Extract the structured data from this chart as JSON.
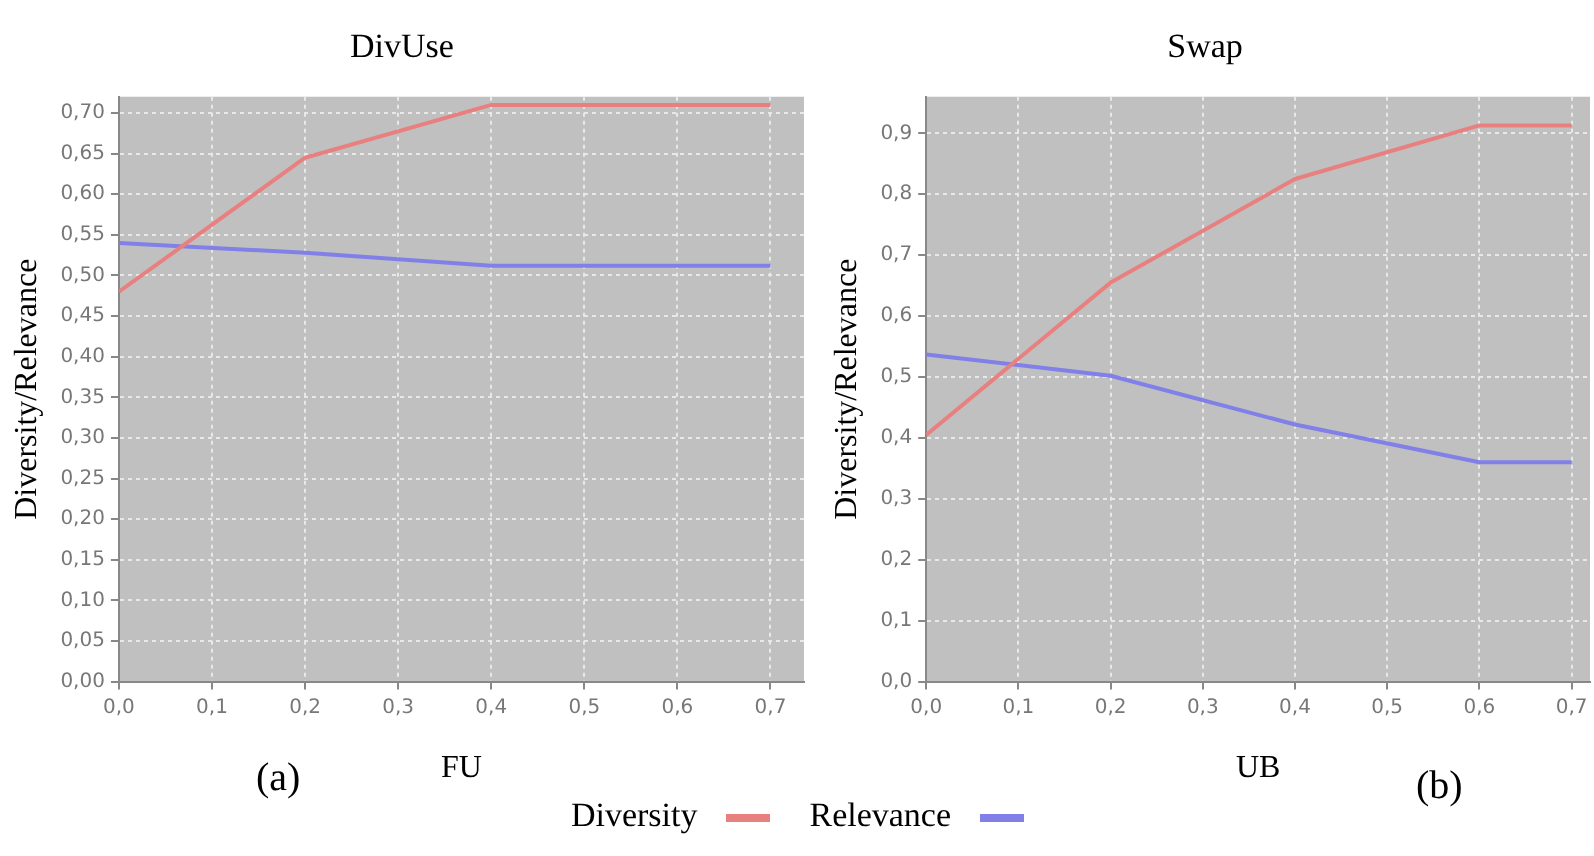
{
  "chart_data": [
    {
      "type": "line",
      "title": "DivUse",
      "xlabel": "FU",
      "ylabel": "Diversity/Relevance",
      "annotations": [
        "(a)"
      ],
      "x": [
        0,
        0.2,
        0.4,
        0.7
      ],
      "series": [
        {
          "color": "#e88080",
          "values": [
            0.48,
            0.645,
            0.71,
            0.71
          ]
        },
        {
          "color": "#8080e8",
          "values": [
            0.54,
            0.528,
            0.512,
            0.512
          ]
        }
      ],
      "xlim": [
        0,
        0.736
      ],
      "ylim": [
        0,
        0.72
      ],
      "xticks": [
        {
          "value": 0,
          "label": "0,0"
        },
        {
          "value": 0.1,
          "label": "0,1"
        },
        {
          "value": 0.2,
          "label": "0,2"
        },
        {
          "value": 0.3,
          "label": "0,3"
        },
        {
          "value": 0.4,
          "label": "0,4"
        },
        {
          "value": 0.5,
          "label": "0,5"
        },
        {
          "value": 0.6,
          "label": "0,6"
        },
        {
          "value": 0.7,
          "label": "0,7"
        }
      ],
      "yticks": [
        {
          "value": 0,
          "label": "0,00"
        },
        {
          "value": 0.05,
          "label": "0,05"
        },
        {
          "value": 0.1,
          "label": "0,10"
        },
        {
          "value": 0.15,
          "label": "0,15"
        },
        {
          "value": 0.2,
          "label": "0,20"
        },
        {
          "value": 0.25,
          "label": "0,25"
        },
        {
          "value": 0.3,
          "label": "0,30"
        },
        {
          "value": 0.35,
          "label": "0,35"
        },
        {
          "value": 0.4,
          "label": "0,40"
        },
        {
          "value": 0.45,
          "label": "0,45"
        },
        {
          "value": 0.5,
          "label": "0,50"
        },
        {
          "value": 0.55,
          "label": "0,55"
        },
        {
          "value": 0.6,
          "label": "0,60"
        },
        {
          "value": 0.65,
          "label": "0,65"
        },
        {
          "value": 0.7,
          "label": "0,70"
        }
      ],
      "grid": true,
      "legend": false,
      "marker": "none"
    },
    {
      "type": "line",
      "title": "Swap",
      "xlabel": "UB",
      "ylabel": "Diversity/Relevance",
      "annotations": [
        "(b)"
      ],
      "x": [
        0,
        0.2,
        0.4,
        0.6,
        0.7
      ],
      "series": [
        {
          "name": "Diversity",
          "color": "#e88080",
          "values": [
            0.405,
            0.655,
            0.825,
            0.913,
            0.913
          ]
        },
        {
          "name": "Relevance",
          "color": "#8080e8",
          "values": [
            0.537,
            0.502,
            0.422,
            0.36,
            0.36
          ]
        }
      ],
      "xlim": [
        0,
        0.72
      ],
      "ylim": [
        0,
        0.96
      ],
      "xticks": [
        {
          "value": 0,
          "label": "0,0"
        },
        {
          "value": 0.1,
          "label": "0,1"
        },
        {
          "value": 0.2,
          "label": "0,2"
        },
        {
          "value": 0.3,
          "label": "0,3"
        },
        {
          "value": 0.4,
          "label": "0,4"
        },
        {
          "value": 0.5,
          "label": "0,5"
        },
        {
          "value": 0.6,
          "label": "0,6"
        },
        {
          "value": 0.7,
          "label": "0,7"
        }
      ],
      "yticks": [
        {
          "value": 0,
          "label": "0,0"
        },
        {
          "value": 0.1,
          "label": "0,1"
        },
        {
          "value": 0.2,
          "label": "0,2"
        },
        {
          "value": 0.3,
          "label": "0,3"
        },
        {
          "value": 0.4,
          "label": "0,4"
        },
        {
          "value": 0.5,
          "label": "0,5"
        },
        {
          "value": 0.6,
          "label": "0,6"
        },
        {
          "value": 0.7,
          "label": "0,7"
        },
        {
          "value": 0.8,
          "label": "0,8"
        },
        {
          "value": 0.9,
          "label": "0,9"
        }
      ],
      "grid": true,
      "legend": "bottom",
      "marker": "none"
    }
  ]
}
